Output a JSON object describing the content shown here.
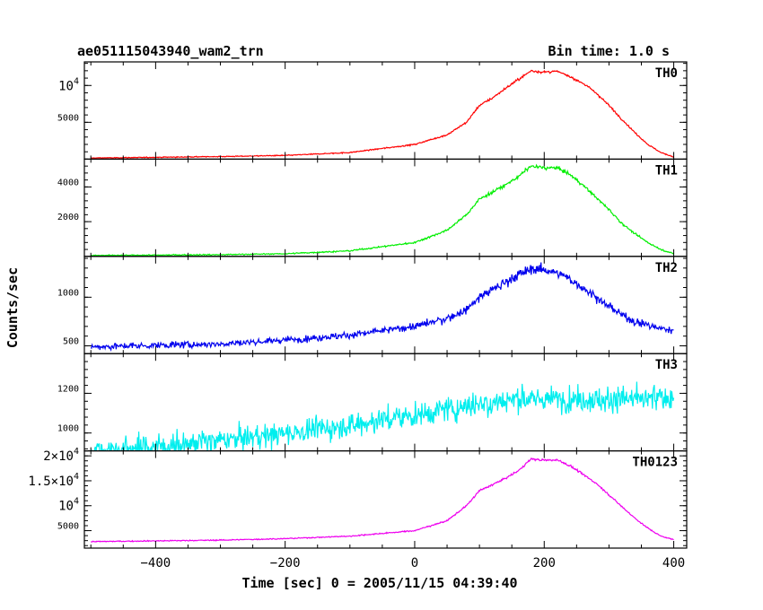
{
  "chart_data": {
    "type": "line",
    "title": "ae051115043940_wam2_trn",
    "bin_time_label": "Bin time: 1.0 s",
    "xlabel": "Time [sec] 0 = 2005/11/15 04:39:40",
    "ylabel": "Counts/sec",
    "xlim": [
      -510,
      420
    ],
    "x_ticks": [
      -400,
      -200,
      0,
      200,
      400
    ],
    "x_tick_labels": [
      "−400",
      "−200",
      "0",
      "200",
      "400"
    ],
    "bin_time_s": 1.0,
    "grid": false,
    "legend": "none",
    "panels": [
      {
        "name": "TH0",
        "color": "#ff0000",
        "ylim": [
          0,
          13200
        ],
        "y_ticks": [
          5000,
          10000
        ],
        "y_tick_labels": [
          [
            "",
            "5000",
            ""
          ],
          [
            "10",
            "4",
            ""
          ]
        ],
        "noise": 120,
        "profile_x": [
          -500,
          -300,
          -200,
          -100,
          0,
          50,
          80,
          100,
          120,
          140,
          160,
          180,
          200,
          220,
          240,
          260,
          280,
          300,
          320,
          340,
          360,
          380,
          400
        ],
        "profile_y": [
          150,
          350,
          500,
          900,
          2000,
          3300,
          5000,
          7300,
          8300,
          9600,
          10800,
          12000,
          11800,
          11900,
          11200,
          10300,
          9000,
          7300,
          5400,
          3600,
          2000,
          900,
          300
        ]
      },
      {
        "name": "TH1",
        "color": "#00ee00",
        "ylim": [
          0,
          5600
        ],
        "y_ticks": [
          2000,
          4000
        ],
        "y_tick_labels": [
          [
            "",
            "2000",
            ""
          ],
          [
            "",
            "4000",
            ""
          ]
        ],
        "noise": 70,
        "profile_x": [
          -500,
          -300,
          -200,
          -100,
          0,
          50,
          80,
          100,
          120,
          140,
          160,
          180,
          200,
          220,
          240,
          260,
          280,
          300,
          320,
          340,
          360,
          380,
          400
        ],
        "profile_y": [
          50,
          100,
          150,
          320,
          800,
          1500,
          2400,
          3300,
          3700,
          4100,
          4600,
          5200,
          5100,
          5100,
          4700,
          4100,
          3400,
          2700,
          1900,
          1300,
          800,
          400,
          150
        ]
      },
      {
        "name": "TH2",
        "color": "#0000ee",
        "ylim": [
          420,
          1420
        ],
        "y_ticks": [
          500,
          1000
        ],
        "y_tick_labels": [
          [
            "",
            "500",
            ""
          ],
          [
            "",
            "1000",
            ""
          ]
        ],
        "noise": 35,
        "profile_x": [
          -500,
          -300,
          -200,
          -100,
          0,
          50,
          80,
          100,
          120,
          140,
          160,
          180,
          200,
          220,
          240,
          260,
          280,
          300,
          320,
          340,
          360,
          380,
          400
        ],
        "profile_y": [
          490,
          520,
          560,
          610,
          700,
          780,
          870,
          1000,
          1080,
          1150,
          1230,
          1290,
          1290,
          1250,
          1180,
          1100,
          1000,
          900,
          820,
          750,
          710,
          680,
          660
        ]
      },
      {
        "name": "TH3",
        "color": "#00eeee",
        "ylim": [
          910,
          1400
        ],
        "y_ticks": [
          1000,
          1200
        ],
        "y_tick_labels": [
          [
            "",
            "1000",
            ""
          ],
          [
            "",
            "1200",
            ""
          ]
        ],
        "noise": 45,
        "profile_x": [
          -500,
          -400,
          -300,
          -200,
          -100,
          0,
          50,
          100,
          150,
          200,
          250,
          300,
          350,
          400
        ],
        "profile_y": [
          910,
          935,
          960,
          1000,
          1040,
          1090,
          1120,
          1150,
          1170,
          1170,
          1170,
          1170,
          1170,
          1180
        ]
      },
      {
        "name": "TH0123",
        "color": "#ee00ee",
        "ylim": [
          1500,
          21000
        ],
        "y_ticks": [
          5000,
          10000,
          15000,
          20000
        ],
        "y_tick_labels": [
          [
            "",
            "5000",
            ""
          ],
          [
            "10",
            "4",
            ""
          ],
          [
            "1.5×10",
            "4",
            ""
          ],
          [
            "2×10",
            "4",
            ""
          ]
        ],
        "noise": 150,
        "profile_x": [
          -500,
          -300,
          -200,
          -100,
          0,
          50,
          80,
          100,
          120,
          140,
          160,
          180,
          200,
          220,
          240,
          260,
          280,
          300,
          320,
          340,
          360,
          380,
          400
        ],
        "profile_y": [
          2800,
          3100,
          3400,
          3900,
          5000,
          7000,
          10000,
          13000,
          14200,
          15500,
          17000,
          19400,
          19100,
          19200,
          18000,
          16300,
          14500,
          12200,
          9800,
          7500,
          5500,
          3900,
          3200
        ]
      }
    ]
  }
}
